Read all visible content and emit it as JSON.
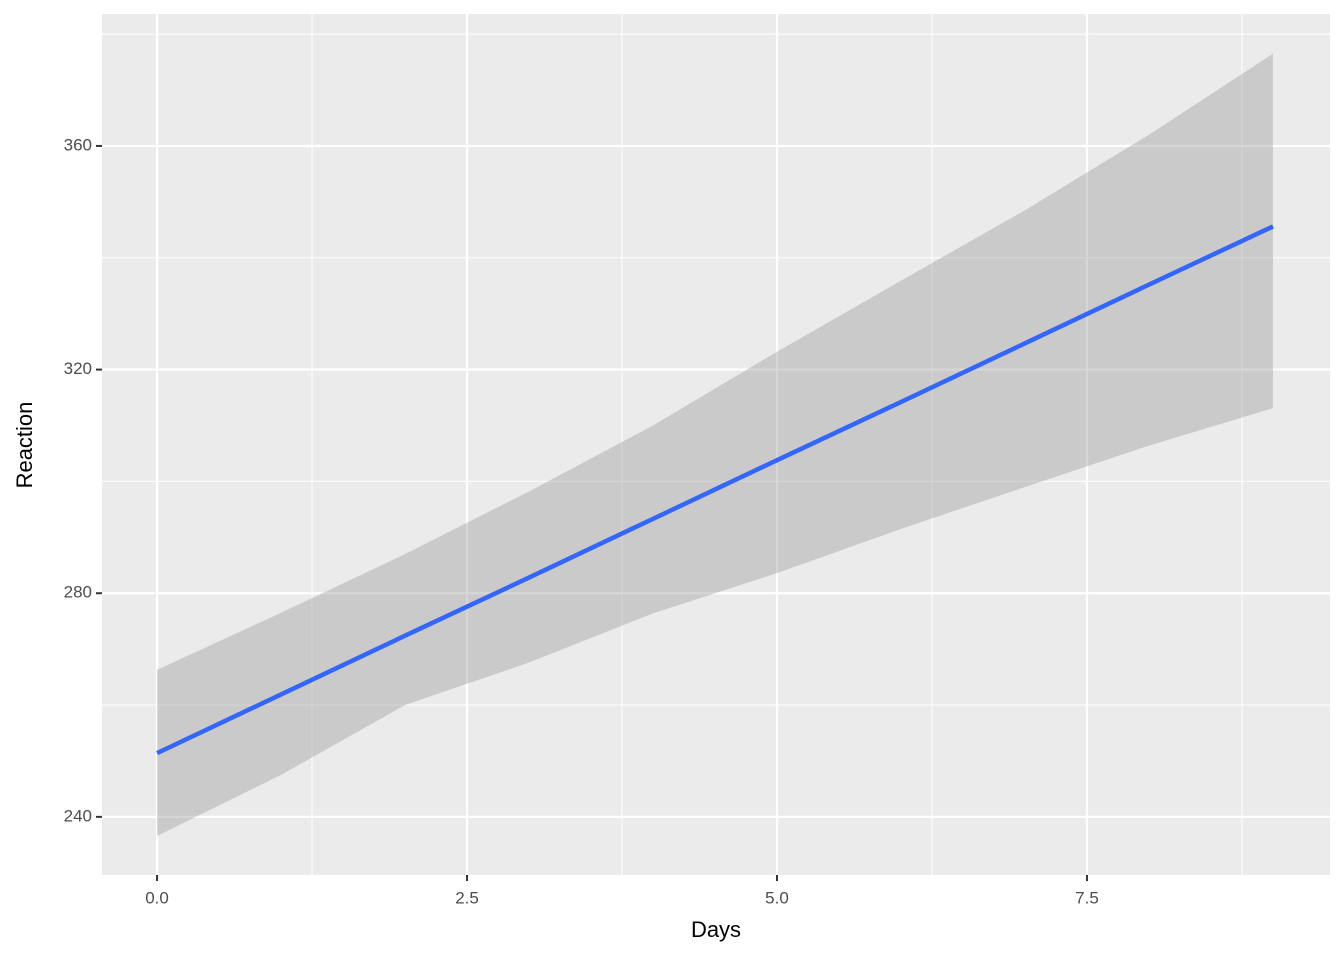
{
  "chart_data": {
    "type": "line",
    "x_label": "Days",
    "y_label": "Reaction",
    "x": [
      0,
      1,
      2,
      3,
      4,
      5,
      6,
      7,
      8,
      9
    ],
    "values": [
      251.4,
      261.9,
      272.4,
      282.8,
      293.3,
      303.8,
      314.2,
      324.7,
      335.2,
      345.6
    ],
    "upper": [
      266.3,
      276.5,
      287.0,
      298.2,
      310.0,
      323.2,
      335.9,
      348.5,
      362.0,
      376.5
    ],
    "lower": [
      236.6,
      247.5,
      260.0,
      267.6,
      276.4,
      283.6,
      291.5,
      299.0,
      306.4,
      313.1
    ],
    "color": "#3366ff",
    "band_color": "#999999",
    "xlim": [
      -0.444,
      9.46
    ],
    "ylim": [
      229.6,
      383.6
    ],
    "xticks": [
      {
        "value": 0,
        "label": "0.0"
      },
      2.5,
      {
        "value": 5,
        "label": "5.0"
      },
      7.5
    ],
    "yticks": [
      240,
      280,
      320,
      360
    ],
    "grid": true
  }
}
